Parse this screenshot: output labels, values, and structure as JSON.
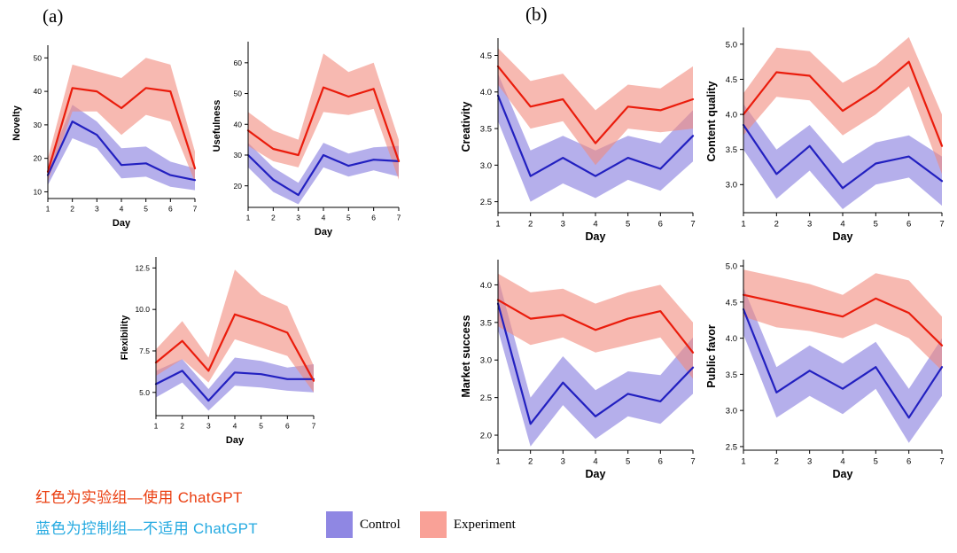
{
  "panel_a_label": "(a)",
  "panel_b_label": "(b)",
  "legend": {
    "control": "Control",
    "experiment": "Experiment"
  },
  "annotations": {
    "red_line": "红色为实验组—使用 ChatGPT",
    "blue_line": "蓝色为控制组—不适用 ChatGPT"
  },
  "colors": {
    "experiment_line": "#ea1c0c",
    "experiment_band": "#f28a7d",
    "control_line": "#2220c0",
    "control_band": "#8379dd",
    "control_swatch": "#8f87e3",
    "experiment_swatch": "#f9a197",
    "red_text": "#ea3d0f",
    "blue_text": "#25aae1"
  },
  "chart_data": [
    {
      "id": "novelty",
      "type": "line",
      "xlabel": "Day",
      "ylabel": "Novelty",
      "x": [
        1,
        2,
        3,
        4,
        5,
        6,
        7
      ],
      "yticks": [
        10,
        20,
        30,
        40,
        50
      ],
      "ytick_labels": [
        "10",
        "20",
        "30",
        "40",
        "50"
      ],
      "ylim": [
        8,
        53
      ],
      "series": [
        {
          "name": "Control",
          "values": [
            15,
            31,
            27,
            18,
            18.5,
            15,
            13.5
          ],
          "upper": [
            18,
            36,
            31,
            23,
            23.5,
            19,
            17
          ],
          "lower": [
            12,
            26,
            23,
            14,
            14.5,
            11.5,
            10.5
          ]
        },
        {
          "name": "Experiment",
          "values": [
            16,
            41,
            40,
            35,
            41,
            40,
            17
          ],
          "upper": [
            20,
            48,
            46,
            44,
            50,
            48,
            22
          ],
          "lower": [
            13,
            34,
            34,
            27,
            33,
            31,
            13
          ]
        }
      ]
    },
    {
      "id": "usefulness",
      "type": "line",
      "xlabel": "Day",
      "ylabel": "Usefulness",
      "x": [
        1,
        2,
        3,
        4,
        5,
        6,
        7
      ],
      "yticks": [
        20,
        30,
        40,
        50,
        60
      ],
      "ytick_labels": [
        "20",
        "30",
        "40",
        "50",
        "60"
      ],
      "ylim": [
        13,
        66
      ],
      "series": [
        {
          "name": "Control",
          "values": [
            30,
            22,
            17,
            30,
            26.5,
            28.5,
            28
          ],
          "upper": [
            34,
            26,
            21,
            34,
            30.5,
            32.5,
            33
          ],
          "lower": [
            26,
            18,
            14,
            26,
            23,
            25,
            23
          ]
        },
        {
          "name": "Experiment",
          "values": [
            38,
            32,
            30,
            52,
            49,
            51.5,
            28
          ],
          "upper": [
            44,
            38,
            35,
            63,
            57,
            60,
            35
          ],
          "lower": [
            33,
            28,
            26,
            44,
            43,
            45,
            22
          ]
        }
      ]
    },
    {
      "id": "flexibility",
      "type": "line",
      "xlabel": "Day",
      "ylabel": "Flexibility",
      "x": [
        1,
        2,
        3,
        4,
        5,
        6,
        7
      ],
      "yticks": [
        5.0,
        7.5,
        10.0,
        12.5
      ],
      "ytick_labels": [
        "5.0",
        "7.5",
        "10.0",
        "12.5"
      ],
      "ylim": [
        3.6,
        13
      ],
      "series": [
        {
          "name": "Control",
          "values": [
            5.5,
            6.3,
            4.5,
            6.2,
            6.1,
            5.8,
            5.8
          ],
          "upper": [
            6.3,
            7.0,
            5.2,
            7.1,
            6.9,
            6.5,
            6.7
          ],
          "lower": [
            4.7,
            5.6,
            3.9,
            5.4,
            5.3,
            5.1,
            5.0
          ]
        },
        {
          "name": "Experiment",
          "values": [
            6.8,
            8.1,
            6.3,
            9.7,
            9.2,
            8.6,
            5.7
          ],
          "upper": [
            7.6,
            9.3,
            7.1,
            12.4,
            10.9,
            10.2,
            6.6
          ],
          "lower": [
            6.0,
            7.0,
            5.6,
            8.2,
            7.7,
            7.2,
            5.0
          ]
        }
      ]
    },
    {
      "id": "creativity",
      "type": "line",
      "xlabel": "Day",
      "ylabel": "Creativity",
      "x": [
        1,
        2,
        3,
        4,
        5,
        6,
        7
      ],
      "yticks": [
        2.5,
        3.0,
        3.5,
        4.0,
        4.5
      ],
      "ytick_labels": [
        "2.5",
        "3.0",
        "3.5",
        "4.0",
        "4.5"
      ],
      "ylim": [
        2.35,
        4.7
      ],
      "series": [
        {
          "name": "Control",
          "values": [
            3.95,
            2.85,
            3.1,
            2.85,
            3.1,
            2.95,
            3.4
          ],
          "upper": [
            4.25,
            3.2,
            3.4,
            3.2,
            3.4,
            3.3,
            3.75
          ],
          "lower": [
            3.6,
            2.5,
            2.75,
            2.55,
            2.8,
            2.65,
            3.05
          ]
        },
        {
          "name": "Experiment",
          "values": [
            4.35,
            3.8,
            3.9,
            3.3,
            3.8,
            3.75,
            3.9
          ],
          "upper": [
            4.6,
            4.15,
            4.25,
            3.75,
            4.1,
            4.05,
            4.35
          ],
          "lower": [
            4.1,
            3.5,
            3.6,
            3.0,
            3.5,
            3.45,
            3.5
          ]
        }
      ]
    },
    {
      "id": "content_quality",
      "type": "line",
      "xlabel": "Day",
      "ylabel": "Content quality",
      "x": [
        1,
        2,
        3,
        4,
        5,
        6,
        7
      ],
      "yticks": [
        3.0,
        3.5,
        4.0,
        4.5,
        5.0
      ],
      "ytick_labels": [
        "3.0",
        "3.5",
        "4.0",
        "4.5",
        "5.0"
      ],
      "ylim": [
        2.6,
        5.2
      ],
      "series": [
        {
          "name": "Control",
          "values": [
            3.85,
            3.15,
            3.55,
            2.95,
            3.3,
            3.4,
            3.05
          ],
          "upper": [
            4.15,
            3.5,
            3.85,
            3.3,
            3.6,
            3.7,
            3.4
          ],
          "lower": [
            3.5,
            2.8,
            3.2,
            2.65,
            3.0,
            3.1,
            2.7
          ]
        },
        {
          "name": "Experiment",
          "values": [
            4.0,
            4.6,
            4.55,
            4.05,
            4.35,
            4.75,
            3.55
          ],
          "upper": [
            4.3,
            4.95,
            4.9,
            4.45,
            4.7,
            5.1,
            4.0
          ],
          "lower": [
            3.7,
            4.25,
            4.2,
            3.7,
            4.0,
            4.4,
            3.15
          ]
        }
      ]
    },
    {
      "id": "market_success",
      "type": "line",
      "xlabel": "Day",
      "ylabel": "Market success",
      "x": [
        1,
        2,
        3,
        4,
        5,
        6,
        7
      ],
      "yticks": [
        2.0,
        2.5,
        3.0,
        3.5,
        4.0
      ],
      "ytick_labels": [
        "2.0",
        "2.5",
        "3.0",
        "3.5",
        "4.0"
      ],
      "ylim": [
        1.8,
        4.3
      ],
      "series": [
        {
          "name": "Control",
          "values": [
            3.75,
            2.15,
            2.7,
            2.25,
            2.55,
            2.45,
            2.9
          ],
          "upper": [
            4.1,
            2.5,
            3.05,
            2.6,
            2.85,
            2.8,
            3.3
          ],
          "lower": [
            3.4,
            1.85,
            2.4,
            1.95,
            2.25,
            2.15,
            2.55
          ]
        },
        {
          "name": "Experiment",
          "values": [
            3.8,
            3.55,
            3.6,
            3.4,
            3.55,
            3.65,
            3.1
          ],
          "upper": [
            4.15,
            3.9,
            3.95,
            3.75,
            3.9,
            4.0,
            3.5
          ],
          "lower": [
            3.45,
            3.2,
            3.3,
            3.1,
            3.2,
            3.3,
            2.75
          ]
        }
      ]
    },
    {
      "id": "public_favor",
      "type": "line",
      "xlabel": "Day",
      "ylabel": "Public favor",
      "x": [
        1,
        2,
        3,
        4,
        5,
        6,
        7
      ],
      "yticks": [
        2.5,
        3.0,
        3.5,
        4.0,
        4.5,
        5.0
      ],
      "ytick_labels": [
        "2.5",
        "3.0",
        "3.5",
        "4.0",
        "4.5",
        "5.0"
      ],
      "ylim": [
        2.45,
        5.05
      ],
      "series": [
        {
          "name": "Control",
          "values": [
            4.4,
            3.25,
            3.55,
            3.3,
            3.6,
            2.9,
            3.6
          ],
          "upper": [
            4.7,
            3.6,
            3.9,
            3.65,
            3.95,
            3.3,
            4.0
          ],
          "lower": [
            4.05,
            2.9,
            3.2,
            2.95,
            3.3,
            2.55,
            3.2
          ]
        },
        {
          "name": "Experiment",
          "values": [
            4.6,
            4.5,
            4.4,
            4.3,
            4.55,
            4.35,
            3.9
          ],
          "upper": [
            4.95,
            4.85,
            4.75,
            4.6,
            4.9,
            4.8,
            4.3
          ],
          "lower": [
            4.3,
            4.15,
            4.1,
            4.0,
            4.2,
            4.0,
            3.55
          ]
        }
      ]
    }
  ]
}
